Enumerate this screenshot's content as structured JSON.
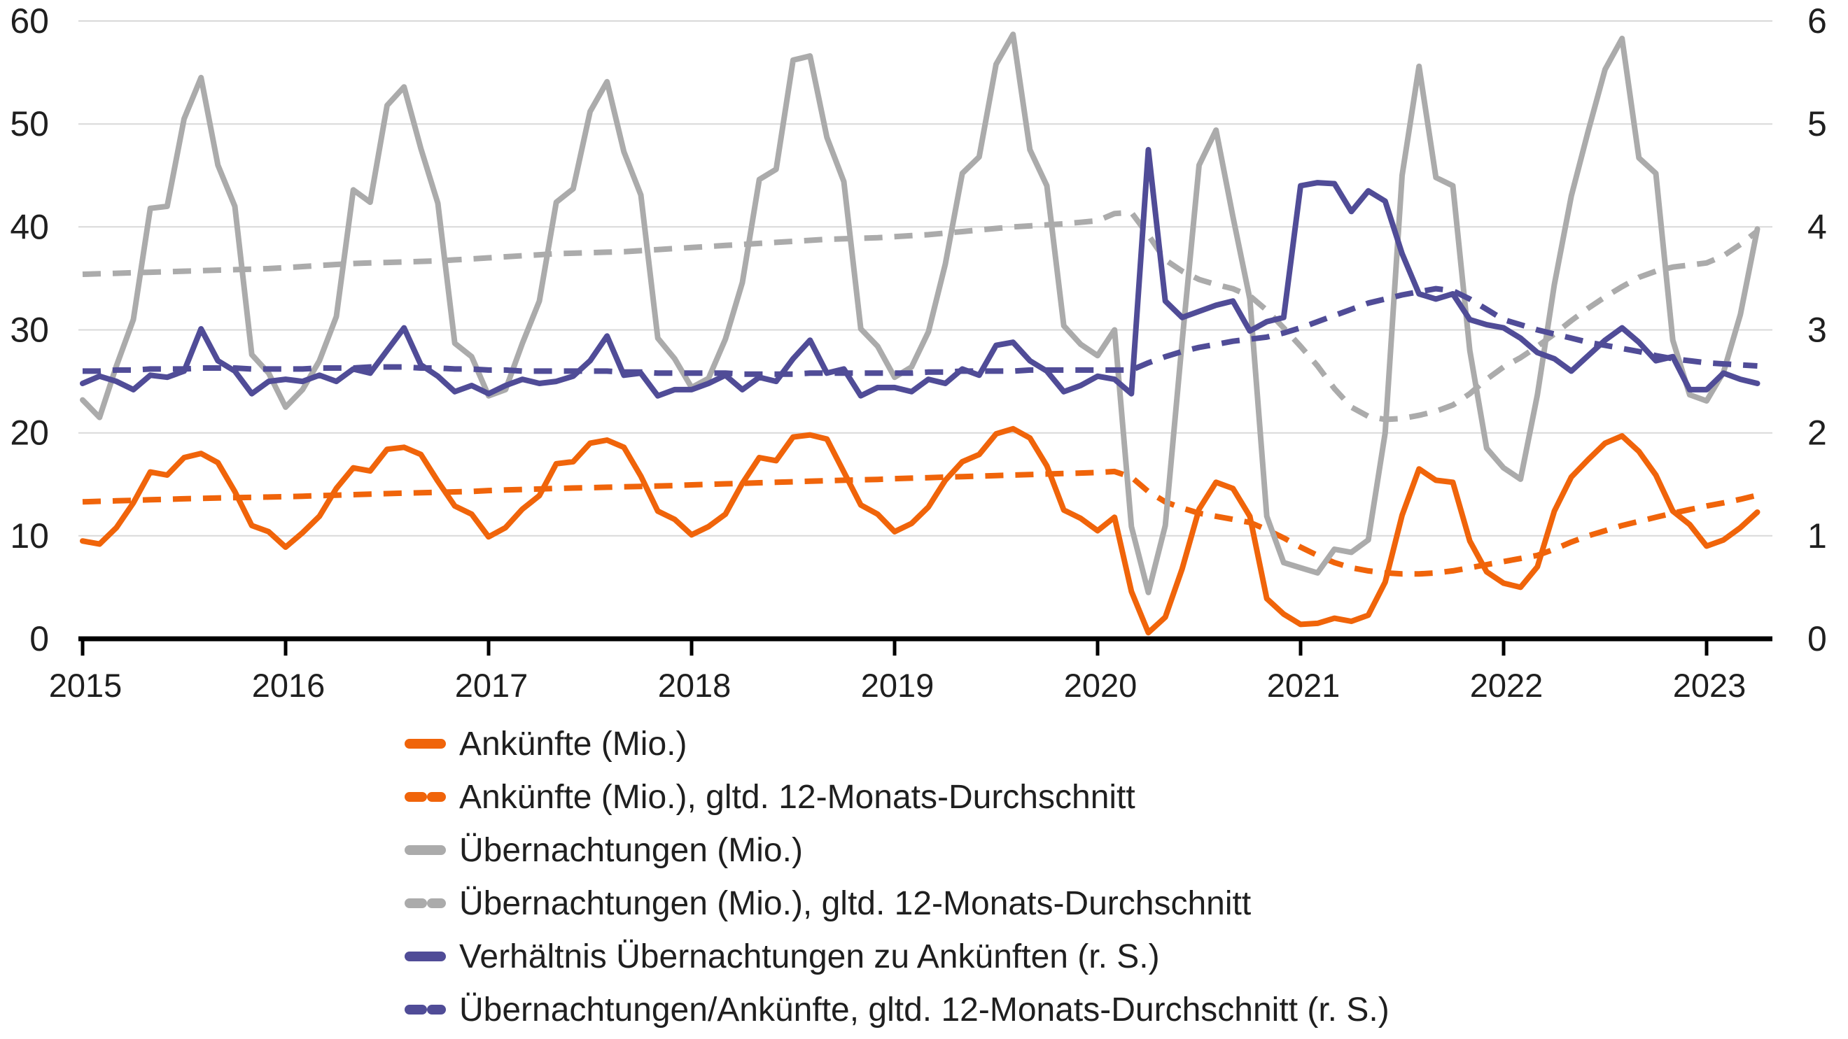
{
  "page": {
    "background": "#ffffff"
  },
  "theme": {
    "grid_color": "#d9d9d9",
    "axis_color": "#000000",
    "text_color": "#1f1f1f",
    "orange": "#f0640a",
    "gray": "#ababab",
    "blue": "#504c97"
  },
  "chart_data": {
    "type": "line",
    "title": "",
    "frequency": "monthly",
    "x_start": "2015-01",
    "x_end": "2023-04",
    "points_per_series": 100,
    "grid": true,
    "legend_position": "bottom-left",
    "x_tick_labels": [
      "2015",
      "2016",
      "2017",
      "2018",
      "2019",
      "2020",
      "2021",
      "2022",
      "2023"
    ],
    "left_axis": {
      "range": [
        0,
        60
      ],
      "ticks": [
        0,
        10,
        20,
        30,
        40,
        50,
        60
      ]
    },
    "right_axis": {
      "range": [
        0,
        6
      ],
      "ticks": [
        0,
        1,
        2,
        3,
        4,
        5,
        6
      ]
    },
    "series": [
      {
        "id": "arrivals",
        "name": "Ankünfte (Mio.)",
        "axis": "left",
        "style": "solid",
        "color": "#f0640a",
        "values": [
          9.5,
          9.2,
          10.8,
          13.2,
          16.2,
          15.9,
          17.6,
          18.0,
          17.1,
          14.3,
          11.0,
          10.4,
          8.9,
          10.3,
          11.9,
          14.6,
          16.6,
          16.3,
          18.4,
          18.6,
          17.9,
          15.3,
          12.9,
          12.1,
          9.9,
          10.8,
          12.6,
          13.9,
          17.0,
          17.2,
          19.0,
          19.3,
          18.6,
          15.8,
          12.4,
          11.6,
          10.1,
          10.9,
          12.1,
          15.1,
          17.6,
          17.3,
          19.6,
          19.8,
          19.4,
          16.2,
          13.0,
          12.1,
          10.4,
          11.2,
          12.8,
          15.4,
          17.2,
          17.9,
          19.9,
          20.4,
          19.5,
          16.8,
          12.5,
          11.7,
          10.5,
          11.8,
          4.6,
          0.6,
          2.1,
          6.8,
          12.6,
          15.2,
          14.6,
          11.9,
          3.9,
          2.4,
          1.4,
          1.5,
          2.0,
          1.7,
          2.3,
          5.5,
          12.0,
          16.5,
          15.4,
          15.2,
          9.5,
          6.5,
          5.4,
          5.0,
          7.0,
          12.4,
          15.7,
          17.4,
          19.0,
          19.7,
          18.2,
          15.9,
          12.4,
          11.1,
          9.0,
          9.6,
          10.8,
          12.3
        ]
      },
      {
        "id": "arrivals-avg-12m",
        "name": "Ankünfte (Mio.), gltd. 12-Monats-Durchschnitt",
        "axis": "left",
        "style": "dashed",
        "color": "#f0640a",
        "values": [
          13.3,
          13.35,
          13.4,
          13.45,
          13.5,
          13.55,
          13.6,
          13.64,
          13.68,
          13.71,
          13.74,
          13.77,
          13.8,
          13.85,
          13.9,
          13.95,
          14.0,
          14.05,
          14.1,
          14.15,
          14.19,
          14.23,
          14.27,
          14.31,
          14.4,
          14.45,
          14.5,
          14.55,
          14.6,
          14.64,
          14.68,
          14.72,
          14.76,
          14.8,
          14.84,
          14.88,
          14.95,
          15.0,
          15.05,
          15.1,
          15.15,
          15.2,
          15.25,
          15.3,
          15.35,
          15.4,
          15.44,
          15.48,
          15.55,
          15.6,
          15.65,
          15.7,
          15.75,
          15.8,
          15.85,
          15.9,
          15.95,
          16.0,
          16.05,
          16.1,
          16.15,
          16.25,
          15.7,
          14.3,
          13.3,
          12.7,
          12.2,
          11.9,
          11.6,
          11.3,
          10.6,
          9.8,
          8.9,
          8.1,
          7.4,
          6.9,
          6.6,
          6.4,
          6.3,
          6.3,
          6.4,
          6.6,
          6.9,
          7.2,
          7.5,
          7.8,
          8.1,
          8.7,
          9.4,
          10.0,
          10.5,
          11.0,
          11.4,
          11.8,
          12.2,
          12.55,
          12.9,
          13.2,
          13.55,
          13.95
        ]
      },
      {
        "id": "overnights",
        "name": "Übernachtungen (Mio.)",
        "axis": "left",
        "style": "solid",
        "color": "#ababab",
        "values": [
          23.2,
          21.5,
          26.5,
          31.0,
          41.8,
          42.0,
          50.5,
          54.5,
          46.0,
          42.0,
          27.6,
          25.8,
          22.5,
          24.2,
          27.0,
          31.3,
          43.6,
          42.4,
          51.8,
          53.6,
          47.6,
          42.3,
          28.7,
          27.4,
          23.6,
          24.2,
          28.7,
          32.8,
          42.4,
          43.7,
          51.2,
          54.1,
          47.3,
          43.1,
          29.2,
          27.2,
          24.4,
          25.3,
          29.1,
          34.6,
          44.6,
          45.6,
          56.2,
          56.6,
          48.7,
          44.4,
          30.1,
          28.4,
          25.4,
          26.4,
          29.8,
          36.4,
          45.2,
          46.8,
          55.8,
          58.7,
          47.5,
          44.0,
          30.4,
          28.6,
          27.5,
          30.0,
          10.9,
          4.5,
          11.0,
          28.9,
          46.0,
          49.4,
          41.0,
          33.0,
          11.9,
          7.4,
          6.9,
          6.4,
          8.7,
          8.4,
          9.6,
          20.0,
          45.0,
          55.6,
          44.8,
          44.0,
          28.0,
          18.5,
          16.6,
          15.5,
          23.7,
          34.4,
          43.0,
          49.3,
          55.3,
          58.3,
          46.7,
          45.2,
          29.0,
          23.7,
          23.1,
          25.9,
          31.5,
          39.8
        ]
      },
      {
        "id": "overnights-avg-12m",
        "name": "Übernachtungen (Mio.), gltd. 12-Monats-Durchschnitt",
        "axis": "left",
        "style": "dashed",
        "color": "#ababab",
        "values": [
          35.4,
          35.45,
          35.5,
          35.55,
          35.6,
          35.65,
          35.7,
          35.75,
          35.8,
          35.85,
          35.9,
          35.95,
          36.05,
          36.15,
          36.25,
          36.35,
          36.45,
          36.5,
          36.55,
          36.6,
          36.65,
          36.7,
          36.8,
          36.9,
          37.0,
          37.1,
          37.2,
          37.3,
          37.4,
          37.45,
          37.5,
          37.55,
          37.6,
          37.7,
          37.8,
          37.9,
          38.0,
          38.1,
          38.2,
          38.3,
          38.4,
          38.5,
          38.6,
          38.7,
          38.8,
          38.85,
          38.9,
          38.95,
          39.05,
          39.15,
          39.25,
          39.4,
          39.55,
          39.7,
          39.85,
          40.0,
          40.1,
          40.2,
          40.3,
          40.45,
          40.6,
          41.3,
          41.4,
          39.2,
          36.8,
          35.7,
          34.9,
          34.4,
          34.0,
          33.3,
          31.9,
          30.2,
          28.4,
          26.5,
          24.3,
          22.5,
          21.6,
          21.3,
          21.4,
          21.7,
          22.1,
          22.7,
          23.8,
          25.2,
          26.4,
          27.3,
          28.4,
          29.6,
          30.9,
          32.1,
          33.2,
          34.2,
          35.1,
          35.7,
          36.1,
          36.3,
          36.5,
          37.2,
          38.3,
          39.6
        ]
      },
      {
        "id": "ratio",
        "name": "Verhältnis Übernachtungen zu Ankünften (r. S.)",
        "axis": "right",
        "style": "solid",
        "color": "#504c97",
        "values": [
          2.48,
          2.55,
          2.5,
          2.42,
          2.56,
          2.54,
          2.6,
          3.01,
          2.7,
          2.6,
          2.38,
          2.5,
          2.52,
          2.5,
          2.56,
          2.5,
          2.62,
          2.58,
          2.8,
          3.02,
          2.66,
          2.55,
          2.4,
          2.46,
          2.38,
          2.46,
          2.52,
          2.48,
          2.5,
          2.55,
          2.7,
          2.94,
          2.56,
          2.58,
          2.36,
          2.42,
          2.42,
          2.48,
          2.56,
          2.42,
          2.54,
          2.5,
          2.72,
          2.9,
          2.58,
          2.62,
          2.36,
          2.44,
          2.44,
          2.4,
          2.52,
          2.48,
          2.62,
          2.56,
          2.85,
          2.88,
          2.7,
          2.6,
          2.4,
          2.46,
          2.55,
          2.52,
          2.38,
          4.75,
          3.28,
          3.12,
          3.18,
          3.24,
          3.28,
          2.99,
          3.08,
          3.12,
          4.4,
          4.43,
          4.42,
          4.15,
          4.35,
          4.25,
          3.74,
          3.35,
          3.3,
          3.35,
          3.1,
          3.05,
          3.02,
          2.92,
          2.78,
          2.72,
          2.6,
          2.75,
          2.9,
          3.02,
          2.88,
          2.7,
          2.74,
          2.42,
          2.42,
          2.58,
          2.52,
          2.48
        ]
      },
      {
        "id": "ratio-avg-12m",
        "name": "Übernachtungen/Ankünfte, gltd. 12-Monats-Durchschnitt (r. S.)",
        "axis": "right",
        "style": "dashed",
        "color": "#504c97",
        "values": [
          2.6,
          2.6,
          2.61,
          2.61,
          2.62,
          2.62,
          2.62,
          2.63,
          2.63,
          2.63,
          2.62,
          2.62,
          2.62,
          2.62,
          2.63,
          2.63,
          2.63,
          2.64,
          2.64,
          2.64,
          2.63,
          2.63,
          2.62,
          2.62,
          2.61,
          2.61,
          2.6,
          2.6,
          2.6,
          2.6,
          2.6,
          2.6,
          2.59,
          2.59,
          2.58,
          2.58,
          2.58,
          2.58,
          2.58,
          2.57,
          2.57,
          2.57,
          2.57,
          2.58,
          2.58,
          2.58,
          2.58,
          2.58,
          2.58,
          2.58,
          2.59,
          2.59,
          2.6,
          2.6,
          2.6,
          2.6,
          2.61,
          2.61,
          2.61,
          2.61,
          2.61,
          2.61,
          2.61,
          2.68,
          2.74,
          2.79,
          2.83,
          2.86,
          2.89,
          2.91,
          2.93,
          2.97,
          3.02,
          3.08,
          3.14,
          3.2,
          3.26,
          3.3,
          3.34,
          3.37,
          3.4,
          3.38,
          3.3,
          3.2,
          3.1,
          3.05,
          3.0,
          2.96,
          2.92,
          2.88,
          2.85,
          2.82,
          2.79,
          2.75,
          2.72,
          2.7,
          2.68,
          2.67,
          2.66,
          2.65
        ]
      }
    ]
  }
}
